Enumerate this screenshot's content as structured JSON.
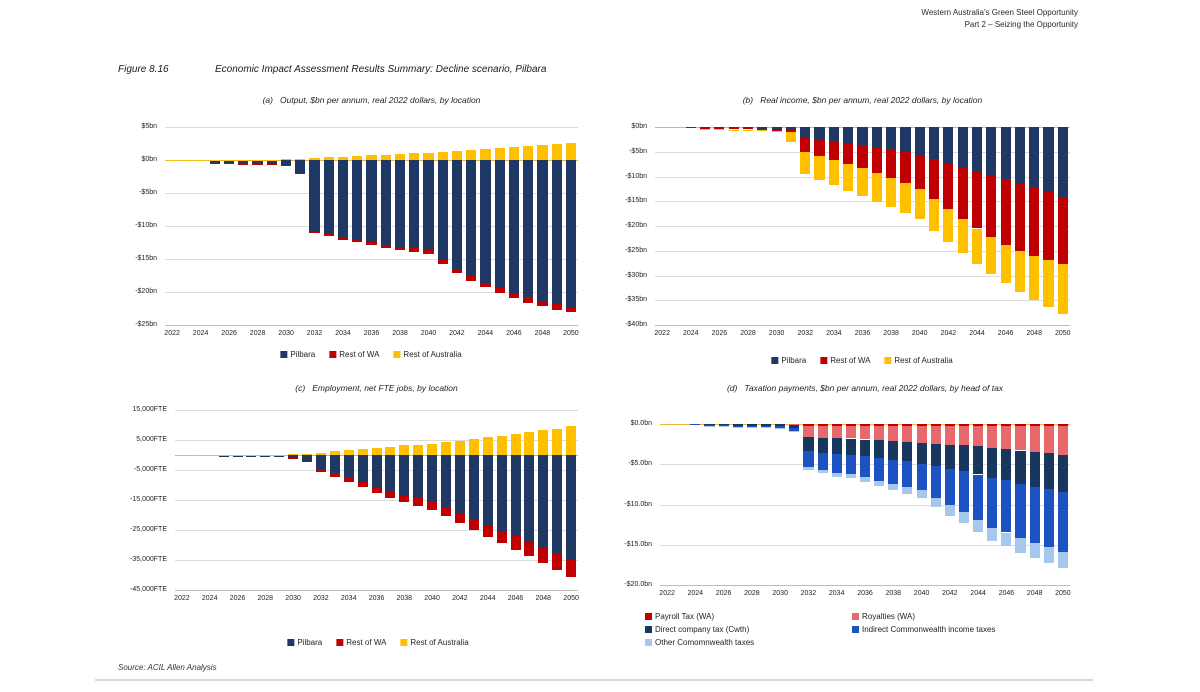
{
  "header": {
    "line1": "Western Australia's Green Steel Opportunity",
    "line2": "Part 2 – Seizing the Opportunity"
  },
  "figure": {
    "label": "Figure 8.16",
    "title": "Economic Impact Assessment Results Summary: Decline scenario, Pilbara"
  },
  "source": "Source: ACIL Allen Analysis",
  "colors": {
    "gridline": "#DBDBDB",
    "axis": "#BDBDBD",
    "zero_line": "#EDB33F",
    "pilbara": "#1F3864",
    "rest_of_wa": "#C00000",
    "rest_of_australia": "#FFC000",
    "payroll_tax_wa": "#C00000",
    "royalties_wa": "#E8696B",
    "direct_company_tax": "#17375E",
    "indirect_cwth_income_taxes": "#1D52C3",
    "other_cwth_taxes": "#A6C8EC"
  },
  "chart_data": [
    {
      "id": "a",
      "type": "bar",
      "stacked": true,
      "panel": "(a)",
      "title": "Output, $bn per annum, real 2022 dollars, by location",
      "ylim": [
        -25,
        5
      ],
      "yticks": [
        {
          "label": "$5bn",
          "v": 5
        },
        {
          "label": "$0bn",
          "v": 0
        },
        {
          "label": "-$5bn",
          "v": -5
        },
        {
          "label": "-$10bn",
          "v": -10
        },
        {
          "label": "-$15bn",
          "v": -15
        },
        {
          "label": "-$20bn",
          "v": -20
        },
        {
          "label": "-$25bn",
          "v": -25
        }
      ],
      "years": [
        2022,
        2023,
        2024,
        2025,
        2026,
        2027,
        2028,
        2029,
        2030,
        2031,
        2032,
        2033,
        2034,
        2035,
        2036,
        2037,
        2038,
        2039,
        2040,
        2041,
        2042,
        2043,
        2044,
        2045,
        2046,
        2047,
        2048,
        2049,
        2050
      ],
      "xticks": [
        "2022",
        "2024",
        "2026",
        "2028",
        "2030",
        "2032",
        "2034",
        "2036",
        "2038",
        "2040",
        "2042",
        "2044",
        "2046",
        "2048",
        "2050"
      ],
      "series": [
        {
          "name": "Pilbara",
          "color": "#1F3864",
          "values": [
            0,
            0,
            -0.1,
            -0.5,
            -0.5,
            -0.6,
            -0.6,
            -0.6,
            -0.7,
            -1.9,
            -10.7,
            -11.2,
            -11.7,
            -12.1,
            -12.4,
            -12.8,
            -13.1,
            -13.4,
            -13.7,
            -15.2,
            -16.5,
            -17.6,
            -18.6,
            -19.4,
            -20.1,
            -20.8,
            -21.3,
            -21.8,
            -22.2
          ]
        },
        {
          "name": "Rest of WA",
          "color": "#C00000",
          "values": [
            0,
            0,
            0,
            -0.05,
            -0.05,
            -0.05,
            -0.05,
            -0.05,
            -0.1,
            -0.1,
            -0.3,
            -0.3,
            -0.4,
            -0.4,
            -0.5,
            -0.5,
            -0.5,
            -0.6,
            -0.6,
            -0.6,
            -0.7,
            -0.7,
            -0.7,
            -0.8,
            -0.8,
            -0.8,
            -0.9,
            -0.9,
            -0.9
          ]
        },
        {
          "name": "Rest of Australia",
          "color": "#FFC000",
          "values": [
            0.05,
            0.05,
            0.05,
            0.05,
            0.05,
            0.05,
            0.05,
            0.05,
            0.1,
            0.1,
            0.3,
            0.4,
            0.5,
            0.6,
            0.7,
            0.8,
            0.9,
            1.0,
            1.1,
            1.2,
            1.4,
            1.5,
            1.7,
            1.8,
            2.0,
            2.1,
            2.3,
            2.4,
            2.6
          ]
        }
      ],
      "legend": [
        {
          "label": "Pilbara",
          "color": "#1F3864"
        },
        {
          "label": "Rest of WA",
          "color": "#C00000"
        },
        {
          "label": "Rest of Australia",
          "color": "#FFC000"
        }
      ]
    },
    {
      "id": "b",
      "type": "bar",
      "stacked": true,
      "panel": "(b)",
      "title": "Real income, $bn per annum, real 2022 dollars, by location",
      "ylim": [
        -40,
        0
      ],
      "yticks": [
        {
          "label": "$0bn",
          "v": 0
        },
        {
          "label": "-$5bn",
          "v": -5
        },
        {
          "label": "-$10bn",
          "v": -10
        },
        {
          "label": "-$15bn",
          "v": -15
        },
        {
          "label": "-$20bn",
          "v": -20
        },
        {
          "label": "-$25bn",
          "v": -25
        },
        {
          "label": "-$30bn",
          "v": -30
        },
        {
          "label": "-$35bn",
          "v": -35
        },
        {
          "label": "-$40bn",
          "v": -40
        }
      ],
      "years": [
        2022,
        2023,
        2024,
        2025,
        2026,
        2027,
        2028,
        2029,
        2030,
        2031,
        2032,
        2033,
        2034,
        2035,
        2036,
        2037,
        2038,
        2039,
        2040,
        2041,
        2042,
        2043,
        2044,
        2045,
        2046,
        2047,
        2048,
        2049,
        2050
      ],
      "xticks": [
        "2022",
        "2024",
        "2026",
        "2028",
        "2030",
        "2032",
        "2034",
        "2036",
        "2038",
        "2040",
        "2042",
        "2044",
        "2046",
        "2048",
        "2050"
      ],
      "series": [
        {
          "name": "Pilbara",
          "color": "#1F3864",
          "values": [
            0,
            0,
            -0.05,
            -0.2,
            -0.2,
            -0.25,
            -0.25,
            -0.3,
            -0.4,
            -0.6,
            -2.3,
            -2.6,
            -2.9,
            -3.2,
            -3.6,
            -4.0,
            -4.5,
            -5.0,
            -5.6,
            -6.4,
            -7.2,
            -8.0,
            -8.8,
            -9.6,
            -10.5,
            -11.4,
            -12.3,
            -13.2,
            -14.2
          ]
        },
        {
          "name": "Rest of WA",
          "color": "#C00000",
          "values": [
            0,
            0,
            -0.05,
            -0.2,
            -0.2,
            -0.25,
            -0.25,
            -0.3,
            -0.3,
            -0.5,
            -2.7,
            -3.2,
            -3.7,
            -4.2,
            -4.7,
            -5.3,
            -5.8,
            -6.4,
            -6.9,
            -8.1,
            -9.3,
            -10.5,
            -11.7,
            -12.7,
            -13.3,
            -13.6,
            -13.7,
            -13.7,
            -13.5
          ]
        },
        {
          "name": "Rest of Australia",
          "color": "#FFC000",
          "values": [
            0,
            0,
            0,
            -0.1,
            -0.15,
            -0.2,
            -0.2,
            -0.2,
            -0.3,
            -1.9,
            -4.5,
            -4.9,
            -5.2,
            -5.5,
            -5.7,
            -5.8,
            -5.9,
            -6.0,
            -6.1,
            -6.5,
            -6.7,
            -6.9,
            -7.1,
            -7.4,
            -7.8,
            -8.3,
            -8.9,
            -9.5,
            -10.0
          ]
        }
      ],
      "legend": [
        {
          "label": "Pilbara",
          "color": "#1F3864"
        },
        {
          "label": "Rest of WA",
          "color": "#C00000"
        },
        {
          "label": "Rest of Australia",
          "color": "#FFC000"
        }
      ]
    },
    {
      "id": "c",
      "type": "bar",
      "stacked": true,
      "panel": "(c)",
      "title": "Employment, net FTE jobs, by location",
      "ylim": [
        -45000,
        15000
      ],
      "yticks": [
        {
          "label": "15,000FTE",
          "v": 15000
        },
        {
          "label": "5,000FTE",
          "v": 5000
        },
        {
          "label": "-5,000FTE",
          "v": -5000
        },
        {
          "label": "-15,000FTE",
          "v": -15000
        },
        {
          "label": "-25,000FTE",
          "v": -25000
        },
        {
          "label": "-35,000FTE",
          "v": -35000
        },
        {
          "label": "-45,000FTE",
          "v": -45000
        }
      ],
      "years": [
        2022,
        2023,
        2024,
        2025,
        2026,
        2027,
        2028,
        2029,
        2030,
        2031,
        2032,
        2033,
        2034,
        2035,
        2036,
        2037,
        2038,
        2039,
        2040,
        2041,
        2042,
        2043,
        2044,
        2045,
        2046,
        2047,
        2048,
        2049,
        2050
      ],
      "xticks": [
        "2022",
        "2024",
        "2026",
        "2028",
        "2030",
        "2032",
        "2034",
        "2036",
        "2038",
        "2040",
        "2042",
        "2044",
        "2046",
        "2048",
        "2050"
      ],
      "series": [
        {
          "name": "Pilbara",
          "color": "#1F3864",
          "values": [
            0,
            0,
            -100,
            -700,
            -700,
            -800,
            -800,
            -800,
            -900,
            -2000,
            -4500,
            -6000,
            -7500,
            -9000,
            -10500,
            -12000,
            -13200,
            -14300,
            -15300,
            -17300,
            -19300,
            -21300,
            -23300,
            -25200,
            -27000,
            -29000,
            -31000,
            -32800,
            -34500
          ]
        },
        {
          "name": "Rest of WA",
          "color": "#C00000",
          "values": [
            0,
            0,
            0,
            0,
            0,
            0,
            0,
            0,
            -100,
            -200,
            -1000,
            -1200,
            -1500,
            -1800,
            -2100,
            -2300,
            -2500,
            -2700,
            -2900,
            -3200,
            -3500,
            -3800,
            -4100,
            -4300,
            -4500,
            -4800,
            -5000,
            -5500,
            -6200
          ]
        },
        {
          "name": "Rest of Australia",
          "color": "#FFC000",
          "values": [
            100,
            100,
            100,
            100,
            100,
            150,
            150,
            150,
            200,
            300,
            800,
            1200,
            1600,
            2000,
            2400,
            2800,
            3200,
            3500,
            3800,
            4300,
            4800,
            5400,
            6000,
            6500,
            7000,
            7600,
            8200,
            8800,
            9800
          ]
        }
      ],
      "legend": [
        {
          "label": "Pilbara",
          "color": "#1F3864"
        },
        {
          "label": "Rest of WA",
          "color": "#C00000"
        },
        {
          "label": "Rest of Australia",
          "color": "#FFC000"
        }
      ]
    },
    {
      "id": "d",
      "type": "bar",
      "stacked": true,
      "panel": "(d)",
      "title": "Taxation payments, $bn per annum, real 2022 dollars, by head of tax",
      "ylim": [
        -20,
        0
      ],
      "yticks": [
        {
          "label": "$0.0bn",
          "v": 0
        },
        {
          "label": "-$5.0bn",
          "v": -5
        },
        {
          "label": "-$10.0bn",
          "v": -10
        },
        {
          "label": "-$15.0bn",
          "v": -15
        },
        {
          "label": "-$20.0bn",
          "v": -20
        }
      ],
      "years": [
        2022,
        2023,
        2024,
        2025,
        2026,
        2027,
        2028,
        2029,
        2030,
        2031,
        2032,
        2033,
        2034,
        2035,
        2036,
        2037,
        2038,
        2039,
        2040,
        2041,
        2042,
        2043,
        2044,
        2045,
        2046,
        2047,
        2048,
        2049,
        2050
      ],
      "xticks": [
        "2022",
        "2024",
        "2026",
        "2028",
        "2030",
        "2032",
        "2034",
        "2036",
        "2038",
        "2040",
        "2042",
        "2044",
        "2046",
        "2048",
        "2050"
      ],
      "series": [
        {
          "name": "Payroll Tax (WA)",
          "color": "#C00000",
          "values": [
            0,
            0,
            0,
            -0.02,
            -0.02,
            -0.02,
            -0.02,
            -0.03,
            -0.03,
            -0.05,
            -0.2,
            -0.2,
            -0.2,
            -0.2,
            -0.22,
            -0.22,
            -0.24,
            -0.24,
            -0.25,
            -0.25,
            -0.26,
            -0.26,
            -0.27,
            -0.28,
            -0.28,
            -0.29,
            -0.3,
            -0.3,
            -0.3
          ]
        },
        {
          "name": "Royalties (WA)",
          "color": "#E8696B",
          "values": [
            0,
            0,
            0,
            0,
            0,
            0,
            0,
            0,
            -0.02,
            -0.1,
            -1.4,
            -1.5,
            -1.55,
            -1.6,
            -1.7,
            -1.8,
            -1.9,
            -2.0,
            -2.1,
            -2.2,
            -2.3,
            -2.4,
            -2.5,
            -2.7,
            -2.8,
            -3.0,
            -3.2,
            -3.3,
            -3.5
          ]
        },
        {
          "name": "Direct company tax (Cwth)",
          "color": "#17375E",
          "values": [
            0,
            0,
            -0.03,
            -0.15,
            -0.15,
            -0.18,
            -0.18,
            -0.2,
            -0.25,
            -0.4,
            -1.8,
            -1.9,
            -2.0,
            -2.0,
            -2.1,
            -2.2,
            -2.3,
            -2.4,
            -2.6,
            -2.8,
            -3.0,
            -3.2,
            -3.5,
            -3.7,
            -3.9,
            -4.1,
            -4.3,
            -4.5,
            -4.7
          ]
        },
        {
          "name": "Indirect Commonwealth income taxes",
          "color": "#1D52C3",
          "values": [
            0,
            0,
            -0.02,
            -0.1,
            -0.1,
            -0.12,
            -0.12,
            -0.15,
            -0.2,
            -0.35,
            -1.9,
            -2.1,
            -2.3,
            -2.4,
            -2.6,
            -2.8,
            -3.0,
            -3.2,
            -3.3,
            -3.9,
            -4.5,
            -5.1,
            -5.7,
            -6.2,
            -6.5,
            -6.8,
            -7.0,
            -7.2,
            -7.4
          ]
        },
        {
          "name": "Other Comomnwealth taxes",
          "color": "#A6C8EC",
          "values": [
            0,
            0,
            0,
            -0.03,
            -0.03,
            -0.04,
            -0.04,
            -0.05,
            -0.07,
            -0.1,
            -0.4,
            -0.45,
            -0.5,
            -0.55,
            -0.6,
            -0.7,
            -0.8,
            -0.9,
            -1.0,
            -1.1,
            -1.3,
            -1.4,
            -1.5,
            -1.6,
            -1.7,
            -1.8,
            -1.9,
            -2.0,
            -2.0
          ]
        }
      ],
      "legend": [
        {
          "label": "Payroll Tax (WA)",
          "color": "#C00000"
        },
        {
          "label": "Royalties (WA)",
          "color": "#E8696B"
        },
        {
          "label": "Direct company tax (Cwth)",
          "color": "#17375E"
        },
        {
          "label": "Indirect Commonwealth income taxes",
          "color": "#1D52C3"
        },
        {
          "label": "Other Comomnwealth taxes",
          "color": "#A6C8EC"
        }
      ]
    }
  ]
}
